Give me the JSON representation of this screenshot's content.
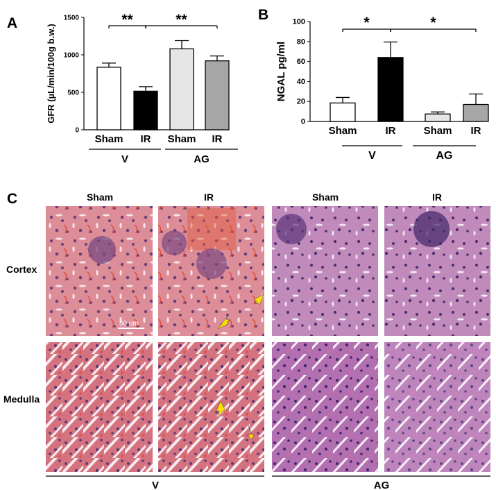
{
  "chart_data": [
    {
      "panel": "A",
      "type": "bar",
      "ylabel": "GFR (µL/min/100g b.w.)",
      "ylim": [
        0,
        1500
      ],
      "yticks": [
        0,
        500,
        1000,
        1500
      ],
      "categories": [
        "Sham",
        "IR",
        "Sham",
        "IR"
      ],
      "groups": [
        "V",
        "AG"
      ],
      "values": [
        835,
        515,
        1080,
        920
      ],
      "errors": [
        55,
        60,
        110,
        65
      ],
      "colors": [
        "#ffffff",
        "#000000",
        "#e6e6e6",
        "#a6a6a6"
      ],
      "significance": [
        "**",
        "**"
      ]
    },
    {
      "panel": "B",
      "type": "bar",
      "ylabel": "NGAL pg/ml",
      "ylim": [
        0,
        100
      ],
      "yticks": [
        0,
        20,
        40,
        60,
        80,
        100
      ],
      "categories": [
        "Sham",
        "IR",
        "Sham",
        "IR"
      ],
      "groups": [
        "V",
        "AG"
      ],
      "values": [
        18.5,
        64,
        7.5,
        17
      ],
      "errors": [
        5.5,
        15.5,
        2,
        10.5
      ],
      "colors": [
        "#ffffff",
        "#000000",
        "#e6e6e6",
        "#a6a6a6"
      ],
      "significance": [
        "*",
        "*"
      ]
    }
  ],
  "panel_c": {
    "label": "C",
    "columns": [
      "Sham",
      "IR",
      "Sham",
      "IR"
    ],
    "rows": [
      "Cortex",
      "Medulla"
    ],
    "scale_bar": "50 um",
    "groups": [
      "V",
      "AG"
    ],
    "stain_colors": [
      "#d98a94",
      "#b36ea8"
    ]
  }
}
